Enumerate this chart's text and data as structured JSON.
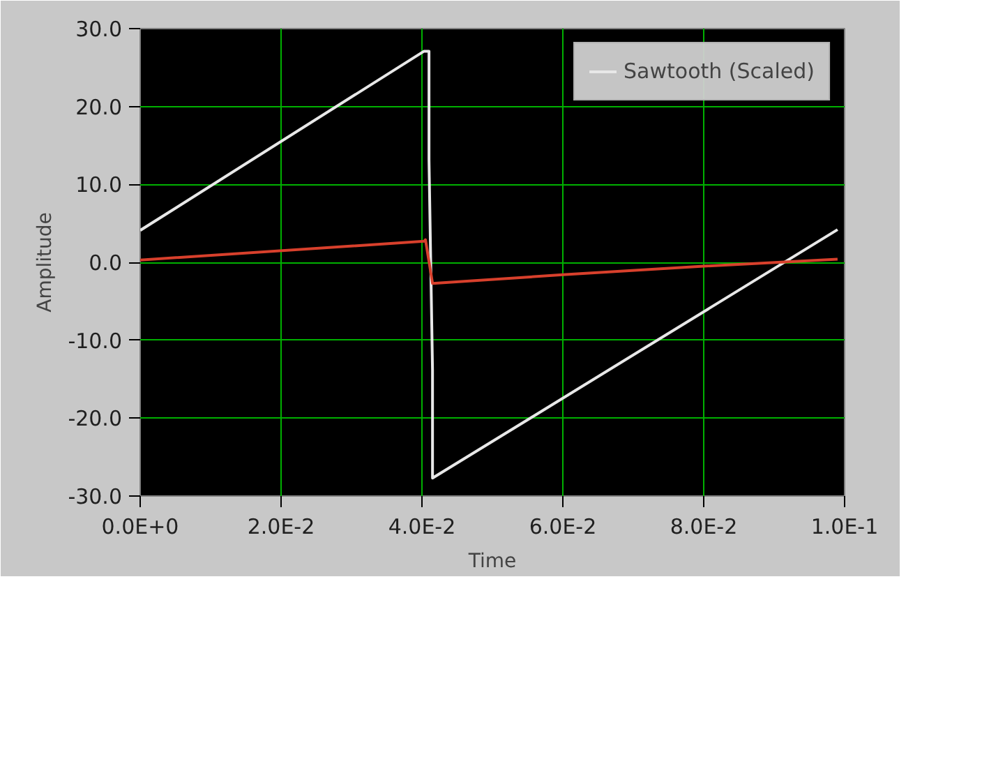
{
  "chart_data": {
    "type": "line",
    "xlabel": "Time",
    "ylabel": "Amplitude",
    "xlim": [
      0,
      0.1
    ],
    "ylim": [
      -30,
      30
    ],
    "xticks": [
      {
        "value": 0,
        "label": "0.0E+0"
      },
      {
        "value": 0.02,
        "label": "2.0E-2"
      },
      {
        "value": 0.04,
        "label": "4.0E-2"
      },
      {
        "value": 0.06,
        "label": "6.0E-2"
      },
      {
        "value": 0.08,
        "label": "8.0E-2"
      },
      {
        "value": 0.1,
        "label": "1.0E-1"
      }
    ],
    "yticks": [
      {
        "value": 30,
        "label": "30.0"
      },
      {
        "value": 20,
        "label": "20.0"
      },
      {
        "value": 10,
        "label": "10.0"
      },
      {
        "value": 0,
        "label": "0.0"
      },
      {
        "value": -10,
        "label": "-10.0"
      },
      {
        "value": -20,
        "label": "-20.0"
      },
      {
        "value": -30,
        "label": "-30.0"
      }
    ],
    "grid": true,
    "legend": "top right",
    "line_style": "solid",
    "marker": "none",
    "series": [
      {
        "name": "Sawtooth (Scaled)",
        "color": "#e8e8e8",
        "x": [
          0,
          0.0403,
          0.041,
          0.041,
          0.0415,
          0.0415,
          0.099
        ],
        "values": [
          4.1,
          27.1,
          27.1,
          13.2,
          -13.8,
          -27.7,
          4.2
        ]
      },
      {
        "color": "#d8402c",
        "x": [
          0,
          0.0403,
          0.0405,
          0.0415,
          0.06,
          0.08,
          0.099
        ],
        "values": [
          0.3,
          2.7,
          2.9,
          -2.7,
          -1.6,
          -0.5,
          0.4
        ]
      }
    ]
  }
}
